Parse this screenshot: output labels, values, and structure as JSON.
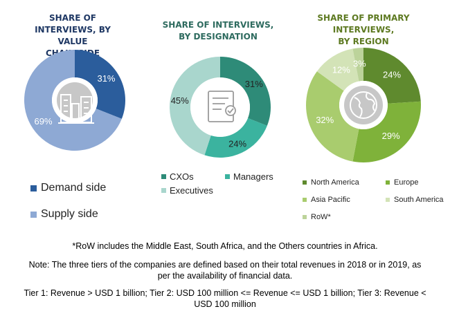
{
  "chart_data": [
    {
      "type": "pie",
      "title": "SHARE OF\nINTERVIEWS, BY VALUE\nCHAIN SIDE",
      "categories": [
        "Demand side",
        "Supply side"
      ],
      "values": [
        31,
        69
      ],
      "labels": [
        "31%",
        "69%"
      ],
      "colors": [
        "#2b5d9c",
        "#8ea9d4"
      ],
      "label_colors": [
        "#ffffff",
        "#ffffff"
      ],
      "legend": "bottom"
    },
    {
      "type": "pie",
      "title": "SHARE OF INTERVIEWS,\nBY DESIGNATION",
      "categories": [
        "CXOs",
        "Managers",
        "Executives"
      ],
      "values": [
        31,
        24,
        45
      ],
      "labels": [
        "31%",
        "24%",
        "45%"
      ],
      "colors": [
        "#2e8b78",
        "#3bb39f",
        "#a9d6cd"
      ],
      "label_colors": [
        "#222222",
        "#222222",
        "#222222"
      ],
      "legend": "bottom"
    },
    {
      "type": "pie",
      "title": "SHARE OF PRIMARY\nINTERVIEWS,\nBY REGION",
      "categories": [
        "North America",
        "Europe",
        "Asia Pacific",
        "South America",
        "RoW*"
      ],
      "values": [
        24,
        29,
        32,
        12,
        3
      ],
      "labels": [
        "24%",
        "29%",
        "32%",
        "12%",
        "3%"
      ],
      "colors": [
        "#5f8a2e",
        "#7fb23a",
        "#a9cc6e",
        "#d3e3b7",
        "#bcd39a"
      ],
      "label_colors": [
        "#ffffff",
        "#ffffff",
        "#ffffff",
        "#ffffff",
        "#ffffff"
      ],
      "legend": "bottom"
    }
  ],
  "notes": {
    "row": "*RoW includes the Middle East, South Africa, and the Others countries in Africa.",
    "tiers_line1": "Note: The three tiers of the companies are defined based on their total revenues in 2018 or in 2019, as",
    "tiers_line2": "per the availability of financial data.",
    "tier_def_line1": "Tier 1: Revenue > USD 1 billion; Tier 2: USD 100 million <= Revenue <= USD 1 billion; Tier 3: Revenue <",
    "tier_def_line2": "USD 100 million"
  },
  "icons": [
    "buildings-icon",
    "certificate-icon",
    "globe-icon"
  ]
}
